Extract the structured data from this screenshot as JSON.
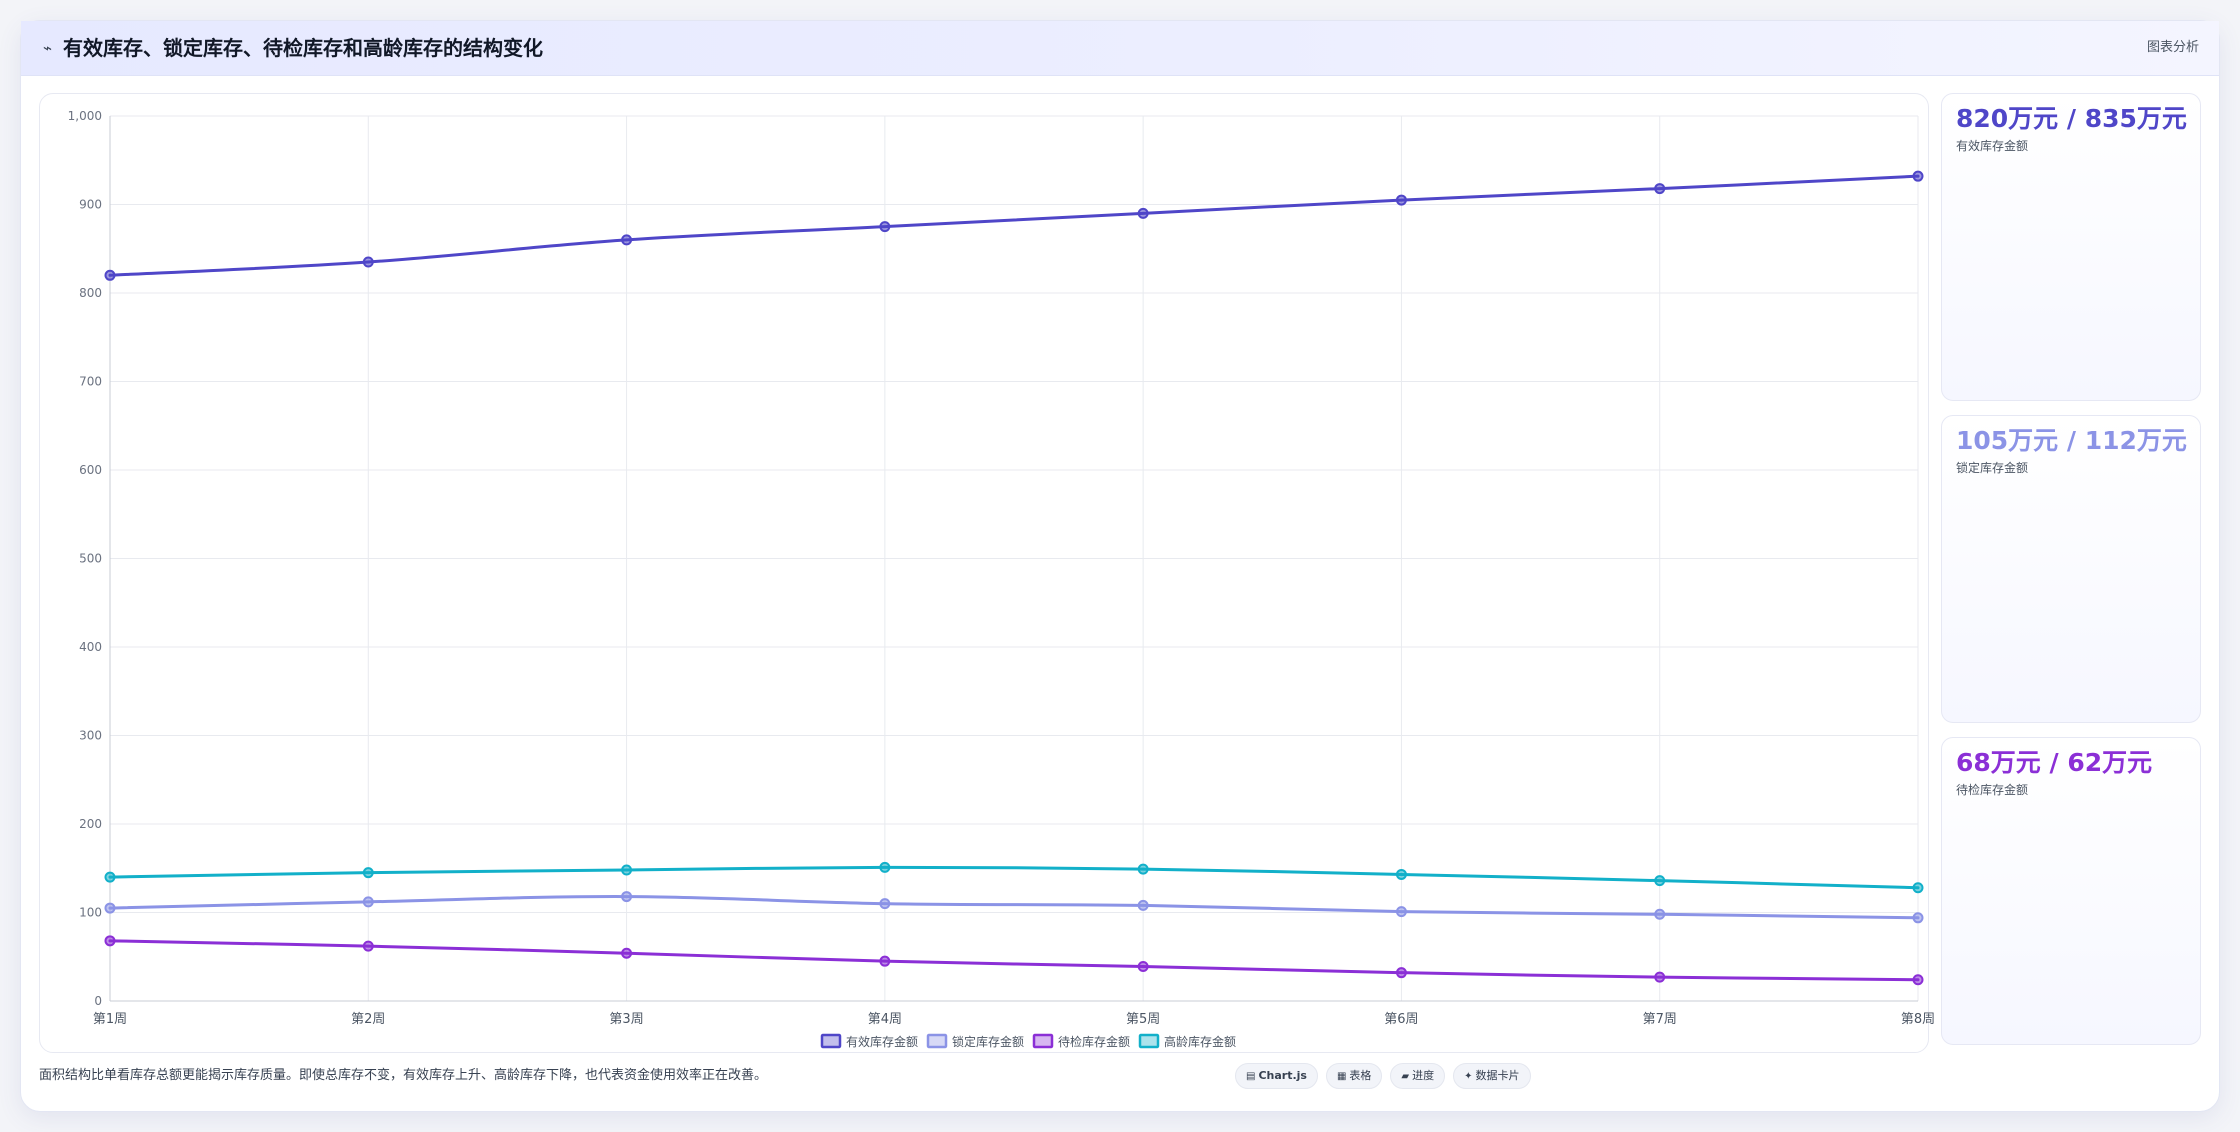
{
  "header": {
    "icon": "trend-icon",
    "title": "有效库存、锁定库存、待检库存和高龄库存的结构变化",
    "tag": "图表分析"
  },
  "chart_data": {
    "type": "line",
    "categories": [
      "第1周",
      "第2周",
      "第3周",
      "第4周",
      "第5周",
      "第6周",
      "第7周",
      "第8周"
    ],
    "ylim": [
      0,
      1000
    ],
    "yticks": [
      0,
      100,
      200,
      300,
      400,
      500,
      600,
      700,
      800,
      900,
      1000
    ],
    "ytick_labels": [
      "0",
      "100",
      "200",
      "300",
      "400",
      "500",
      "600",
      "700",
      "800",
      "900",
      "1,000"
    ],
    "grid": true,
    "legend_position": "bottom",
    "series": [
      {
        "name": "有效库存金额",
        "color": "#4f46c8",
        "values": [
          820,
          835,
          860,
          875,
          890,
          905,
          918,
          932
        ]
      },
      {
        "name": "锁定库存金额",
        "color": "#8b93e6",
        "values": [
          105,
          112,
          118,
          110,
          108,
          101,
          98,
          94
        ]
      },
      {
        "name": "待检库存金额",
        "color": "#8b2fd6",
        "values": [
          68,
          62,
          54,
          45,
          39,
          32,
          27,
          24
        ]
      },
      {
        "name": "高龄库存金额",
        "color": "#12b0c9",
        "values": [
          140,
          145,
          148,
          151,
          149,
          143,
          136,
          128
        ]
      }
    ]
  },
  "side_cards": [
    {
      "value": "820万元 / 835万元",
      "label": "有效库存金额",
      "color": "#4f46c8"
    },
    {
      "value": "105万元 / 112万元",
      "label": "锁定库存金额",
      "color": "#8b93e6"
    },
    {
      "value": "68万元 / 62万元",
      "label": "待检库存金额",
      "color": "#8b2fd6"
    }
  ],
  "footer": {
    "note": "面积结构比单看库存总额更能揭示库存质量。即使总库存不变，有效库存上升、高龄库存下降，也代表资金使用效率正在改善。",
    "chips": [
      {
        "icon": "chart-icon",
        "label": "Chart.js",
        "bold": true
      },
      {
        "icon": "table-icon",
        "label": "表格",
        "bold": false
      },
      {
        "icon": "progress-icon",
        "label": "进度",
        "bold": false
      },
      {
        "icon": "sparkle-icon",
        "label": "数据卡片",
        "bold": false
      }
    ]
  }
}
